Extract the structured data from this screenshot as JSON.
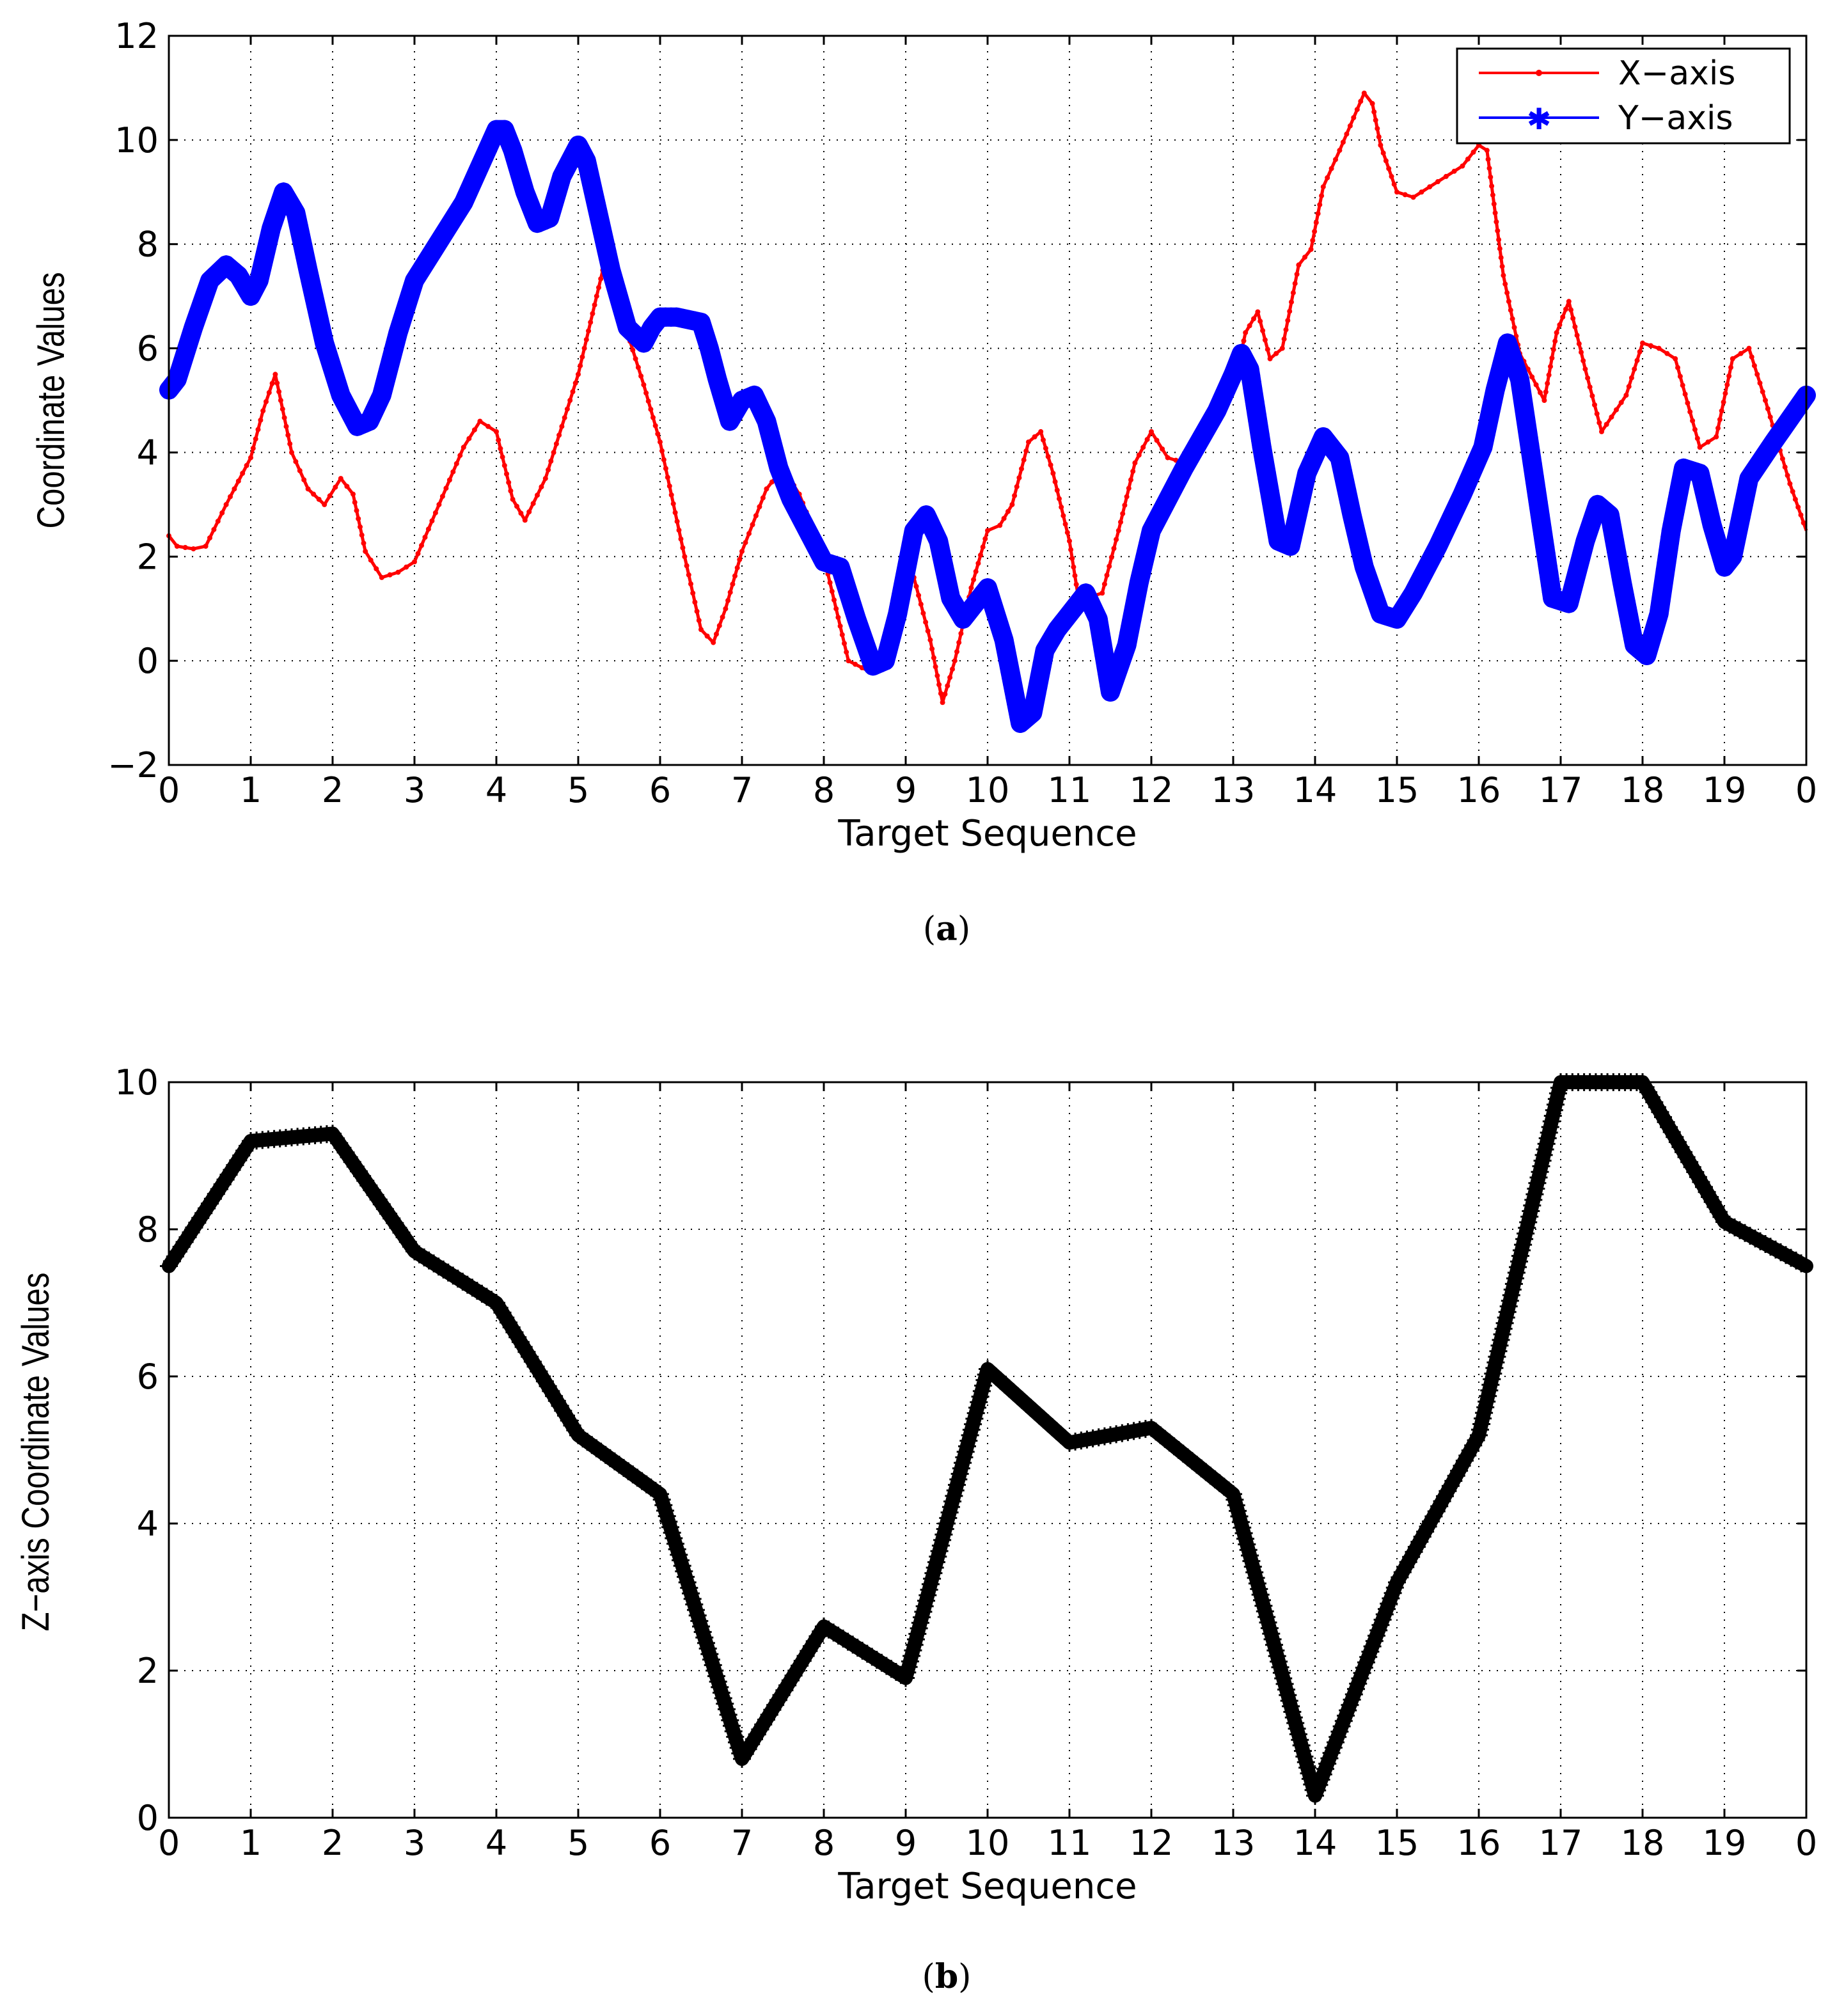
{
  "colors": {
    "x_series": "#ff0000",
    "y_series": "#0000ff",
    "z_series": "#000000"
  },
  "chart_data": [
    {
      "id": "a",
      "type": "line",
      "caption_letter": "a",
      "caption_open": "(",
      "caption_close": ")",
      "xlabel": "Target Sequence",
      "ylabel": "Coordinate Values",
      "xlim": [
        0,
        20
      ],
      "ylim": [
        -2,
        12
      ],
      "xticks": [
        0,
        1,
        2,
        3,
        4,
        5,
        6,
        7,
        8,
        9,
        10,
        11,
        12,
        13,
        14,
        15,
        16,
        17,
        18,
        19,
        20
      ],
      "xtick_labels": [
        "0",
        "1",
        "2",
        "3",
        "4",
        "5",
        "6",
        "7",
        "8",
        "9",
        "10",
        "11",
        "12",
        "13",
        "14",
        "15",
        "16",
        "17",
        "18",
        "19",
        "0"
      ],
      "yticks": [
        -2,
        0,
        2,
        4,
        6,
        8,
        10,
        12
      ],
      "ytick_labels": [
        "−2",
        "0",
        "2",
        "4",
        "6",
        "8",
        "10",
        "12"
      ],
      "grid": true,
      "legend": {
        "placement": "top-right",
        "entries": [
          "X−axis",
          "Y−axis"
        ]
      },
      "series": [
        {
          "name": "X−axis",
          "marker": "dot",
          "color": "#ff0000",
          "x": [
            0,
            0.1,
            0.3,
            0.45,
            0.7,
            1,
            1.15,
            1.3,
            1.5,
            1.7,
            1.9,
            2.1,
            2.25,
            2.4,
            2.6,
            2.8,
            3,
            3.3,
            3.6,
            3.8,
            4,
            4.2,
            4.35,
            4.6,
            5,
            5.3,
            5.5,
            5.8,
            6,
            6.3,
            6.5,
            6.65,
            6.8,
            7,
            7.3,
            7.5,
            7.7,
            8,
            8.3,
            8.55,
            8.7,
            8.95,
            9.1,
            9.3,
            9.45,
            9.6,
            9.8,
            10,
            10.15,
            10.3,
            10.5,
            10.65,
            10.8,
            11,
            11.1,
            11.2,
            11.4,
            11.6,
            11.8,
            12,
            12.2,
            12.4,
            12.7,
            13,
            13.15,
            13.3,
            13.45,
            13.6,
            13.8,
            13.95,
            14.1,
            14.3,
            14.6,
            14.7,
            14.8,
            15,
            15.2,
            15.5,
            15.8,
            16,
            16.1,
            16.3,
            16.5,
            16.8,
            16.95,
            17.1,
            17.3,
            17.5,
            17.8,
            18,
            18.2,
            18.4,
            18.7,
            18.9,
            19.1,
            19.3,
            19.5,
            19.8,
            20
          ],
          "y": [
            2.4,
            2.2,
            2.15,
            2.2,
            3,
            3.9,
            4.8,
            5.5,
            4.0,
            3.3,
            3.0,
            3.5,
            3.2,
            2.1,
            1.6,
            1.7,
            1.9,
            3.0,
            4.1,
            4.6,
            4.4,
            3.1,
            2.7,
            3.5,
            5.5,
            7.5,
            6.8,
            5.3,
            4.2,
            2.0,
            0.6,
            0.35,
            1.0,
            2.1,
            3.3,
            3.7,
            3.2,
            2.0,
            0.0,
            -0.2,
            0.2,
            1.6,
            1.6,
            0.4,
            -0.8,
            0.0,
            1.4,
            2.5,
            2.6,
            3.0,
            4.2,
            4.4,
            3.6,
            2.3,
            1.3,
            1.2,
            1.3,
            2.5,
            3.8,
            4.4,
            3.9,
            3.8,
            4.5,
            5.2,
            6.3,
            6.7,
            5.8,
            6.0,
            7.6,
            7.9,
            9.1,
            9.8,
            10.9,
            10.7,
            9.9,
            9.0,
            8.9,
            9.2,
            9.5,
            9.9,
            9.8,
            7.4,
            5.9,
            5.0,
            6.3,
            6.9,
            5.6,
            4.4,
            5.1,
            6.1,
            6.0,
            5.8,
            4.1,
            4.3,
            5.8,
            6.0,
            5.0,
            3.4,
            2.5
          ]
        },
        {
          "name": "Y−axis",
          "marker": "star",
          "color": "#0000ff",
          "x": [
            0,
            0.1,
            0.3,
            0.5,
            0.7,
            0.85,
            1,
            1.1,
            1.25,
            1.4,
            1.55,
            1.7,
            1.9,
            2.1,
            2.3,
            2.45,
            2.6,
            2.8,
            3,
            3.2,
            3.4,
            3.6,
            3.8,
            4,
            4.1,
            4.2,
            4.35,
            4.5,
            4.65,
            4.8,
            5,
            5.1,
            5.2,
            5.4,
            5.6,
            5.8,
            5.9,
            6,
            6.2,
            6.5,
            6.6,
            6.7,
            6.85,
            7,
            7.15,
            7.3,
            7.45,
            7.6,
            7.8,
            8,
            8.2,
            8.4,
            8.6,
            8.75,
            8.9,
            9.1,
            9.25,
            9.4,
            9.55,
            9.7,
            9.85,
            10,
            10.2,
            10.4,
            10.55,
            10.7,
            10.85,
            11,
            11.2,
            11.35,
            11.5,
            11.7,
            11.85,
            12,
            12.4,
            12.8,
            13,
            13.1,
            13.2,
            13.35,
            13.55,
            13.7,
            13.9,
            14.1,
            14.3,
            14.45,
            14.6,
            14.8,
            15,
            15.2,
            15.5,
            15.8,
            16.05,
            16.2,
            16.35,
            16.5,
            16.7,
            16.9,
            17.1,
            17.3,
            17.45,
            17.6,
            17.75,
            17.9,
            18.05,
            18.2,
            18.35,
            18.5,
            18.7,
            18.85,
            19,
            19.1,
            19.3,
            19.6,
            20
          ],
          "y": [
            5.2,
            5.4,
            6.4,
            7.3,
            7.6,
            7.4,
            7.0,
            7.3,
            8.3,
            9.0,
            8.6,
            7.5,
            6.1,
            5.1,
            4.5,
            4.6,
            5.1,
            6.3,
            7.3,
            7.8,
            8.3,
            8.8,
            9.5,
            10.2,
            10.2,
            9.8,
            9.0,
            8.4,
            8.5,
            9.3,
            9.9,
            9.6,
            8.9,
            7.5,
            6.4,
            6.1,
            6.4,
            6.6,
            6.6,
            6.5,
            6.0,
            5.4,
            4.6,
            5.0,
            5.1,
            4.6,
            3.7,
            3.1,
            2.5,
            1.9,
            1.8,
            0.8,
            -0.1,
            0.0,
            0.9,
            2.5,
            2.8,
            2.3,
            1.2,
            0.8,
            1.1,
            1.4,
            0.4,
            -1.2,
            -1.0,
            0.2,
            0.6,
            0.9,
            1.3,
            0.8,
            -0.6,
            0.3,
            1.5,
            2.5,
            3.7,
            4.8,
            5.5,
            5.9,
            5.6,
            4.1,
            2.3,
            2.2,
            3.6,
            4.3,
            3.9,
            2.8,
            1.8,
            0.9,
            0.8,
            1.3,
            2.2,
            3.2,
            4.1,
            5.2,
            6.1,
            5.4,
            3.3,
            1.2,
            1.1,
            2.3,
            3.0,
            2.8,
            1.5,
            0.3,
            0.1,
            0.9,
            2.5,
            3.7,
            3.6,
            2.6,
            1.8,
            2.0,
            3.5,
            4.2,
            5.1
          ]
        }
      ]
    },
    {
      "id": "b",
      "type": "line",
      "caption_letter": "b",
      "caption_open": "(",
      "caption_close": ")",
      "xlabel": "Target Sequence",
      "ylabel": "Z−axis Coordinate Values",
      "xlim": [
        0,
        20
      ],
      "ylim": [
        0,
        10
      ],
      "xticks": [
        0,
        1,
        2,
        3,
        4,
        5,
        6,
        7,
        8,
        9,
        10,
        11,
        12,
        13,
        14,
        15,
        16,
        17,
        18,
        19,
        20
      ],
      "xtick_labels": [
        "0",
        "1",
        "2",
        "3",
        "4",
        "5",
        "6",
        "7",
        "8",
        "9",
        "10",
        "11",
        "12",
        "13",
        "14",
        "15",
        "16",
        "17",
        "18",
        "19",
        "0"
      ],
      "yticks": [
        0,
        2,
        4,
        6,
        8,
        10
      ],
      "ytick_labels": [
        "0",
        "2",
        "4",
        "6",
        "8",
        "10"
      ],
      "grid": true,
      "series": [
        {
          "name": "Z−axis",
          "marker": "plus",
          "color": "#000000",
          "x": [
            0,
            1,
            2,
            3,
            4,
            5,
            6,
            7,
            8,
            9,
            10,
            11,
            12,
            13,
            14,
            15,
            16,
            17,
            18,
            19,
            20
          ],
          "y": [
            7.5,
            9.2,
            9.3,
            7.7,
            7.0,
            5.2,
            4.4,
            0.8,
            2.6,
            1.9,
            6.1,
            5.1,
            5.3,
            4.4,
            0.3,
            3.2,
            5.2,
            10.0,
            10.0,
            8.1,
            7.5
          ]
        }
      ]
    }
  ]
}
